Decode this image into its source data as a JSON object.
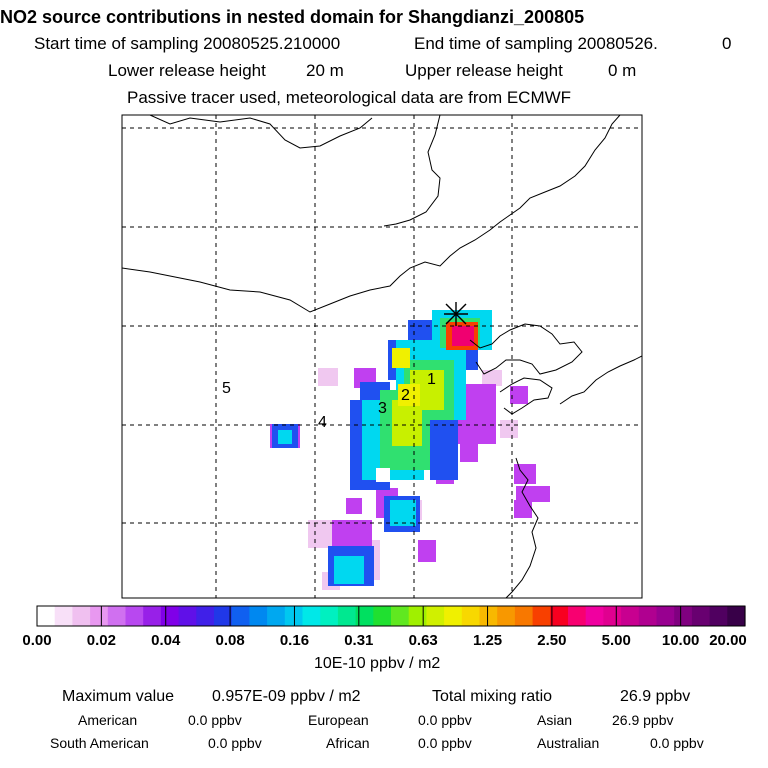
{
  "header": {
    "title": "NO2 source contributions in nested domain for Shangdianzi_200805",
    "start_label": "Start time of sampling 20080525.210000",
    "end_label": "End time of sampling 20080526.",
    "end_value": "0",
    "lower_label": "Lower release height",
    "lower_value": "20 m",
    "upper_label": "Upper release height",
    "upper_value": "0 m",
    "note": "Passive tracer used, meteorological data are from ECMWF"
  },
  "map": {
    "station_marker": "asterisk-icon",
    "region_labels": [
      "1",
      "2",
      "3",
      "4",
      "5"
    ]
  },
  "chart_data": {
    "type": "heatmap",
    "title": "NO2 source contributions in nested domain for Shangdianzi_200805",
    "unit_label": "10E-10 ppbv / m2",
    "colorbar_ticks": [
      "0.00",
      "0.02",
      "0.04",
      "0.08",
      "0.16",
      "0.31",
      "0.63",
      "1.25",
      "2.50",
      "5.00",
      "10.00",
      "20.00"
    ],
    "colorbar_colors": [
      "#ffffff",
      "#f8e0f8",
      "#f0c0f0",
      "#e898f0",
      "#d070f0",
      "#b848f0",
      "#9820e8",
      "#8000e8",
      "#6010e8",
      "#4020e8",
      "#2038e8",
      "#1060f0",
      "#0088f0",
      "#00a8f0",
      "#00c8f0",
      "#00e8e8",
      "#00f0c0",
      "#00e890",
      "#00e060",
      "#20e030",
      "#60e820",
      "#a0f000",
      "#d0f000",
      "#f0f000",
      "#f8d800",
      "#f8b800",
      "#f89800",
      "#f87800",
      "#f84000",
      "#f80020",
      "#f80070",
      "#f000a0",
      "#e00090",
      "#c80090",
      "#b00090",
      "#980090",
      "#800080",
      "#680070",
      "#500060",
      "#380048"
    ],
    "max_value": 0.957,
    "max_value_unit_exponent": "E-09",
    "total_mixing_ratio_ppbv": 26.9,
    "regional_contributions_ppbv": {
      "American": 0.0,
      "European": 0.0,
      "Asian": 26.9,
      "South American": 0.0,
      "African": 0.0,
      "Australian": 0.0
    }
  },
  "footer": {
    "max_label": "Maximum value",
    "max_value": "0.957E-09 ppbv / m2",
    "total_label": "Total mixing ratio",
    "total_value": "26.9 ppbv",
    "regions": [
      {
        "name": "American",
        "value": "0.0 ppbv"
      },
      {
        "name": "European",
        "value": "0.0 ppbv"
      },
      {
        "name": "Asian",
        "value": "26.9 ppbv"
      },
      {
        "name": "South American",
        "value": "0.0 ppbv"
      },
      {
        "name": "African",
        "value": "0.0 ppbv"
      },
      {
        "name": "Australian",
        "value": "0.0 ppbv"
      }
    ]
  }
}
